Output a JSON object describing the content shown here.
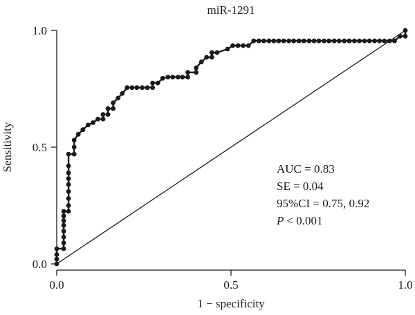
{
  "chart_data": {
    "type": "line",
    "title": "miR-1291",
    "xlabel": "1 − specificity",
    "ylabel": "Sensitivity",
    "xlim": [
      0,
      1
    ],
    "ylim": [
      0,
      1
    ],
    "xticks": [
      "0.0",
      "0.5",
      "1.0"
    ],
    "yticks": [
      "0.0",
      "0.5",
      "1.0"
    ],
    "grid": false,
    "series": [
      {
        "x": [
          0.0,
          0.0,
          0.0,
          0.0,
          0.02,
          0.02,
          0.02,
          0.02,
          0.02,
          0.02,
          0.02,
          0.02,
          0.034,
          0.034,
          0.034,
          0.034,
          0.034,
          0.034,
          0.034,
          0.034,
          0.034,
          0.05,
          0.05,
          0.05,
          0.062,
          0.075,
          0.09,
          0.104,
          0.118,
          0.133,
          0.133,
          0.147,
          0.147,
          0.162,
          0.162,
          0.176,
          0.188,
          0.202,
          0.216,
          0.23,
          0.245,
          0.26,
          0.275,
          0.275,
          0.29,
          0.304,
          0.319,
          0.333,
          0.348,
          0.361,
          0.376,
          0.376,
          0.4,
          0.4,
          0.415,
          0.43,
          0.445,
          0.445,
          0.46,
          0.49,
          0.505,
          0.52,
          0.535,
          0.55,
          0.565,
          0.58,
          0.594,
          0.609,
          0.623,
          0.637,
          0.651,
          0.666,
          0.68,
          0.695,
          0.709,
          0.724,
          0.738,
          0.752,
          0.767,
          0.781,
          0.796,
          0.81,
          0.825,
          0.839,
          0.854,
          0.868,
          0.883,
          0.897,
          0.912,
          0.926,
          0.94,
          0.955,
          0.969,
          0.985,
          1.0,
          1.0
        ],
        "y": [
          0.0,
          0.02,
          0.04,
          0.065,
          0.065,
          0.09,
          0.115,
          0.14,
          0.165,
          0.185,
          0.205,
          0.225,
          0.225,
          0.25,
          0.28,
          0.31,
          0.34,
          0.365,
          0.39,
          0.42,
          0.47,
          0.47,
          0.5,
          0.53,
          0.555,
          0.575,
          0.595,
          0.605,
          0.62,
          0.62,
          0.64,
          0.64,
          0.665,
          0.665,
          0.69,
          0.71,
          0.73,
          0.755,
          0.755,
          0.755,
          0.755,
          0.755,
          0.755,
          0.775,
          0.775,
          0.795,
          0.8,
          0.8,
          0.8,
          0.8,
          0.8,
          0.82,
          0.82,
          0.84,
          0.865,
          0.885,
          0.885,
          0.905,
          0.905,
          0.92,
          0.935,
          0.935,
          0.935,
          0.935,
          0.955,
          0.955,
          0.955,
          0.955,
          0.955,
          0.955,
          0.955,
          0.955,
          0.955,
          0.955,
          0.955,
          0.955,
          0.955,
          0.955,
          0.955,
          0.955,
          0.955,
          0.955,
          0.955,
          0.955,
          0.955,
          0.955,
          0.955,
          0.955,
          0.955,
          0.955,
          0.955,
          0.955,
          0.955,
          0.975,
          0.975,
          1.0
        ]
      },
      {
        "x": [
          0,
          1
        ],
        "y": [
          0,
          1
        ]
      }
    ],
    "annotations": [
      "AUC = 0.83",
      "SE = 0.04",
      "95%CI = 0.75, 0.92",
      "< 0.001"
    ],
    "annotation_italic_prefix": "P"
  }
}
